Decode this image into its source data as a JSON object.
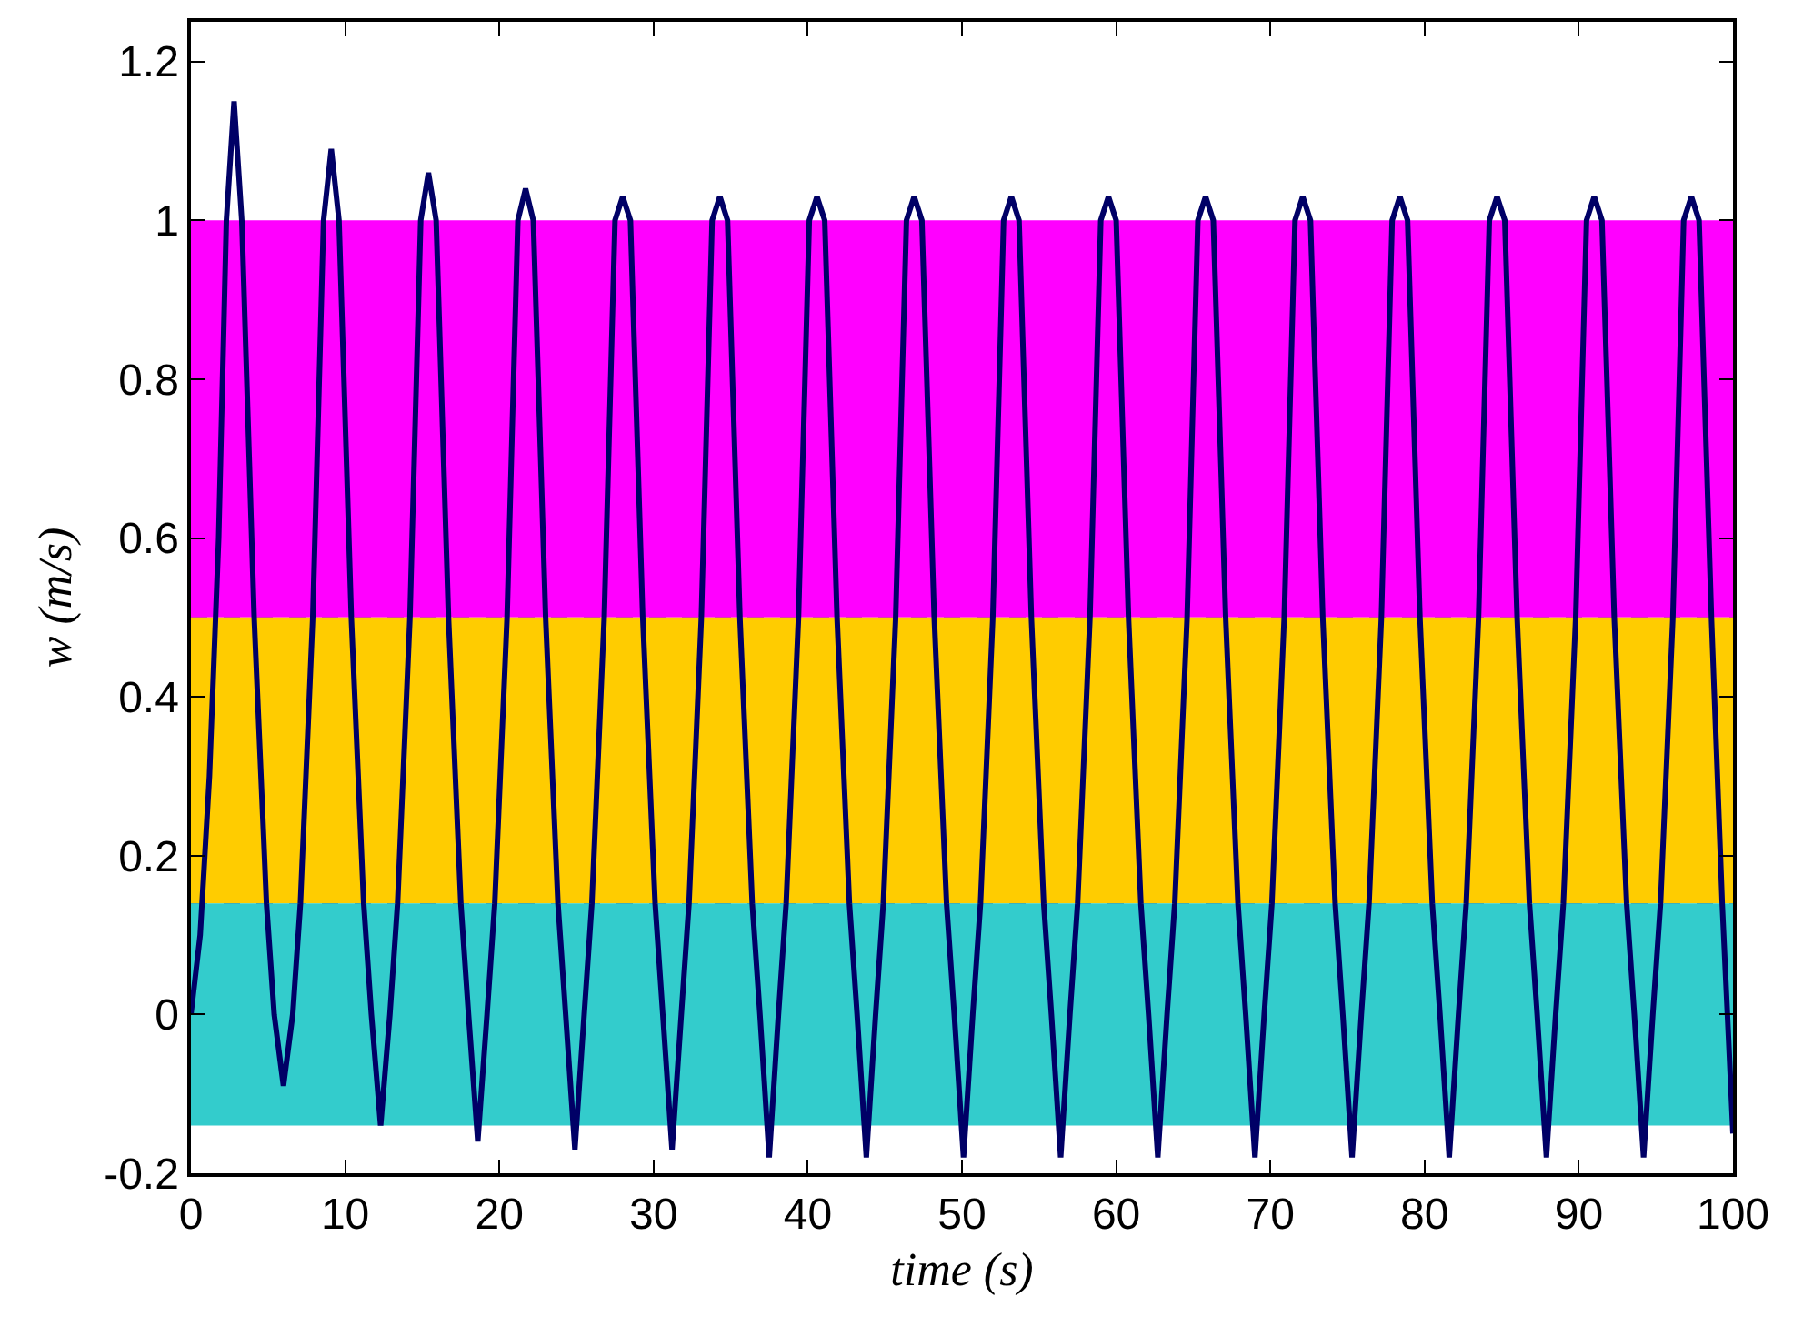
{
  "chart_data": {
    "type": "line",
    "xlabel": "time (s)",
    "ylabel": "w (m/s)",
    "xlim": [
      0,
      100
    ],
    "xticks": [
      0,
      10,
      20,
      30,
      40,
      50,
      60,
      70,
      80,
      90,
      100
    ],
    "ylim": [
      -0.2,
      1.25
    ],
    "yticks": [
      -0.2,
      0,
      0.2,
      0.4,
      0.6,
      0.8,
      1,
      1.2
    ],
    "line_style": "solid",
    "bands": [
      {
        "axis": "y",
        "from": 0.5,
        "to": 1.0,
        "color": "#ff00ff"
      },
      {
        "axis": "y",
        "from": 0.14,
        "to": 0.5,
        "color": "#ffcc00"
      },
      {
        "axis": "y",
        "from": -0.14,
        "to": 0.14,
        "color": "#33cccc"
      }
    ],
    "ref_lines": [
      {
        "axis": "y",
        "value": 0.5,
        "color": "#3333aa",
        "line_style": "dashed"
      },
      {
        "axis": "y",
        "value": 0.14,
        "color": "#3333aa",
        "line_style": "dashed"
      }
    ],
    "series": [
      {
        "color": "#000066",
        "x": [
          0,
          0.6,
          1.2,
          1.8,
          2.3,
          2.8,
          3.3,
          4.1,
          4.9,
          5.4,
          6.0,
          6.6,
          7.1,
          7.9,
          8.6,
          9.1,
          9.6,
          10.4,
          11.2,
          11.7,
          12.3,
          12.9,
          13.4,
          14.2,
          14.9,
          15.4,
          15.9,
          16.7,
          17.5,
          18.0,
          18.6,
          19.2,
          19.7,
          20.5,
          21.2,
          21.7,
          22.2,
          23.0,
          23.8,
          24.3,
          24.9,
          25.5,
          26.0,
          26.8,
          27.5,
          28.0,
          28.5,
          29.3,
          30.1,
          30.6,
          31.2,
          31.8,
          32.3,
          33.1,
          33.8,
          34.3,
          34.8,
          35.6,
          36.4,
          36.9,
          37.5,
          38.1,
          38.6,
          39.4,
          40.1,
          40.6,
          41.1,
          41.9,
          42.7,
          43.2,
          43.8,
          44.4,
          44.9,
          45.7,
          46.4,
          46.9,
          47.4,
          48.2,
          49.0,
          49.5,
          50.1,
          50.7,
          51.2,
          52.0,
          52.7,
          53.2,
          53.7,
          54.5,
          55.3,
          55.8,
          56.4,
          57.0,
          57.5,
          58.3,
          59.0,
          59.5,
          60.0,
          60.8,
          61.6,
          62.1,
          62.7,
          63.3,
          63.8,
          64.6,
          65.3,
          65.8,
          66.3,
          67.1,
          67.9,
          68.4,
          69.0,
          69.6,
          70.1,
          70.9,
          71.6,
          72.1,
          72.6,
          73.4,
          74.2,
          74.7,
          75.3,
          75.9,
          76.4,
          77.2,
          77.9,
          78.4,
          78.9,
          79.7,
          80.5,
          81.0,
          81.6,
          82.2,
          82.7,
          83.5,
          84.2,
          84.7,
          85.2,
          86.0,
          86.8,
          87.3,
          87.9,
          88.5,
          89.0,
          89.8,
          90.5,
          91.0,
          91.5,
          92.3,
          93.1,
          93.6,
          94.2,
          94.8,
          95.3,
          96.1,
          96.8,
          97.3,
          97.8,
          98.6,
          99.3,
          100
        ],
        "values": [
          0,
          0.1,
          0.3,
          0.6,
          1.0,
          1.15,
          1.0,
          0.5,
          0.14,
          0,
          -0.09,
          0,
          0.14,
          0.5,
          1.0,
          1.09,
          1.0,
          0.5,
          0.14,
          0,
          -0.14,
          0,
          0.14,
          0.5,
          1.0,
          1.06,
          1.0,
          0.5,
          0.14,
          0,
          -0.16,
          0,
          0.14,
          0.5,
          1.0,
          1.04,
          1.0,
          0.5,
          0.14,
          0,
          -0.17,
          0,
          0.14,
          0.5,
          1.0,
          1.03,
          1.0,
          0.5,
          0.14,
          0,
          -0.17,
          0,
          0.14,
          0.5,
          1.0,
          1.03,
          1.0,
          0.5,
          0.14,
          0,
          -0.18,
          0,
          0.14,
          0.5,
          1.0,
          1.03,
          1.0,
          0.5,
          0.14,
          0,
          -0.18,
          0,
          0.14,
          0.5,
          1.0,
          1.03,
          1.0,
          0.5,
          0.14,
          0,
          -0.18,
          0,
          0.14,
          0.5,
          1.0,
          1.03,
          1.0,
          0.5,
          0.14,
          0,
          -0.18,
          0,
          0.14,
          0.5,
          1.0,
          1.03,
          1.0,
          0.5,
          0.14,
          0,
          -0.18,
          0,
          0.14,
          0.5,
          1.0,
          1.03,
          1.0,
          0.5,
          0.14,
          0,
          -0.18,
          0,
          0.14,
          0.5,
          1.0,
          1.03,
          1.0,
          0.5,
          0.14,
          0,
          -0.18,
          0,
          0.14,
          0.5,
          1.0,
          1.03,
          1.0,
          0.5,
          0.14,
          0,
          -0.18,
          0,
          0.14,
          0.5,
          1.0,
          1.03,
          1.0,
          0.5,
          0.14,
          0,
          -0.18,
          0,
          0.14,
          0.5,
          1.0,
          1.03,
          1.0,
          0.5,
          0.14,
          0,
          -0.18,
          0,
          0.14,
          0.5,
          1.0,
          1.03,
          1.0,
          0.5,
          0.14,
          -0.15
        ]
      }
    ]
  }
}
